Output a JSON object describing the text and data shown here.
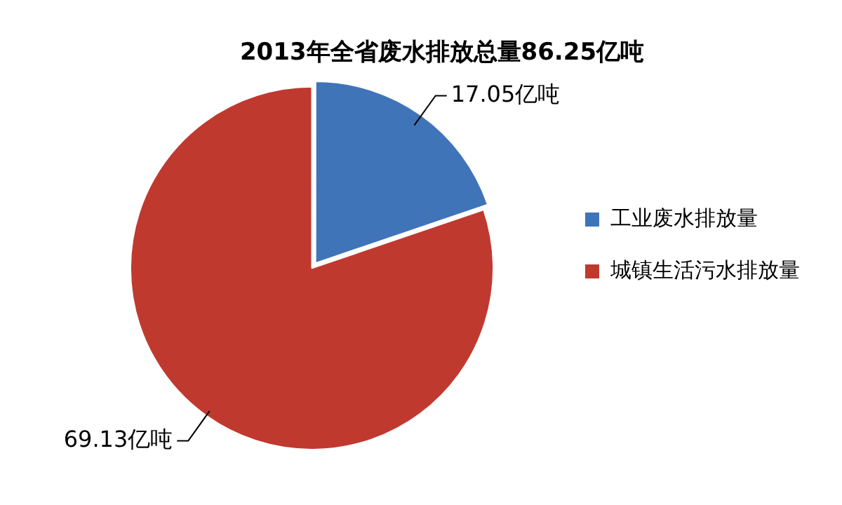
{
  "chart_data": {
    "type": "pie",
    "title": "2013年全省废水排放总量86.25亿吨",
    "categories": [
      "工业废水排放量",
      "城镇生活污水排放量"
    ],
    "values": [
      17.05,
      69.13
    ],
    "colors": [
      "#3f74b8",
      "#c0392f"
    ],
    "value_labels": [
      "17.05亿吨",
      "69.13亿吨"
    ],
    "legend": "right"
  }
}
